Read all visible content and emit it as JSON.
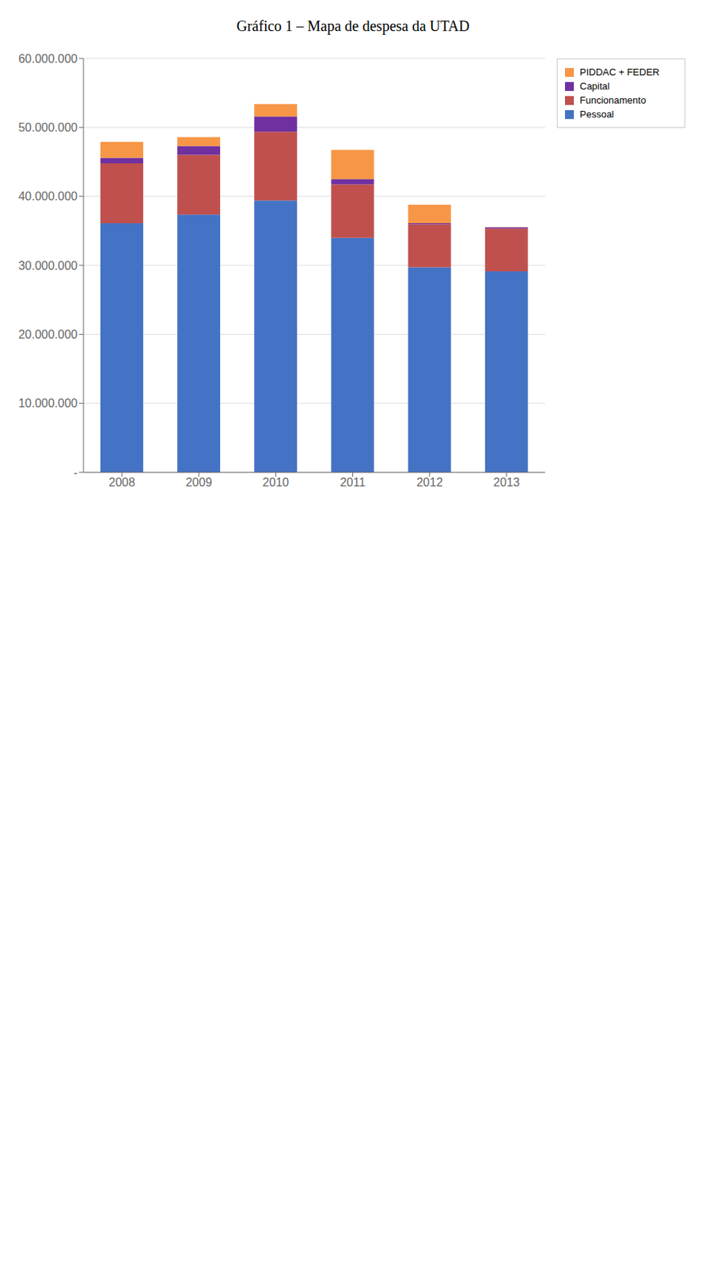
{
  "chart_data": {
    "type": "bar",
    "title": "Gráfico 1 – Mapa de despesa da UTAD",
    "stacked": true,
    "categories": [
      "2008",
      "2009",
      "2010",
      "2011",
      "2012",
      "2013"
    ],
    "series": [
      {
        "name": "Pessoal",
        "color": "#4472C4",
        "values": [
          36105828,
          37354350,
          39389820,
          33982570,
          29742373,
          29140618
        ]
      },
      {
        "name": "Funcionamento",
        "color": "#C0504D",
        "values": [
          8671239,
          8672874,
          9983585,
          7739124,
          6198100,
          6193893
        ]
      },
      {
        "name": "Capital",
        "color": "#7030A0",
        "values": [
          814190,
          1273798,
          2203257,
          777775,
          164494,
          170000
        ]
      },
      {
        "name": "PIDDAC + FEDER",
        "color": "#F79646",
        "values": [
          2303914,
          1292553,
          1798318,
          4236481,
          2674520,
          30000
        ]
      }
    ],
    "ylim": [
      0,
      60000000
    ],
    "yticks": [
      {
        "value": 0,
        "label": "-"
      },
      {
        "value": 10000000,
        "label": "10.000.000"
      },
      {
        "value": 20000000,
        "label": "20.000.000"
      },
      {
        "value": 30000000,
        "label": "30.000.000"
      },
      {
        "value": 40000000,
        "label": "40.000.000"
      },
      {
        "value": 50000000,
        "label": "50.000.000"
      },
      {
        "value": 60000000,
        "label": "60.000.000"
      }
    ],
    "grid": true,
    "legend": "upper right"
  }
}
